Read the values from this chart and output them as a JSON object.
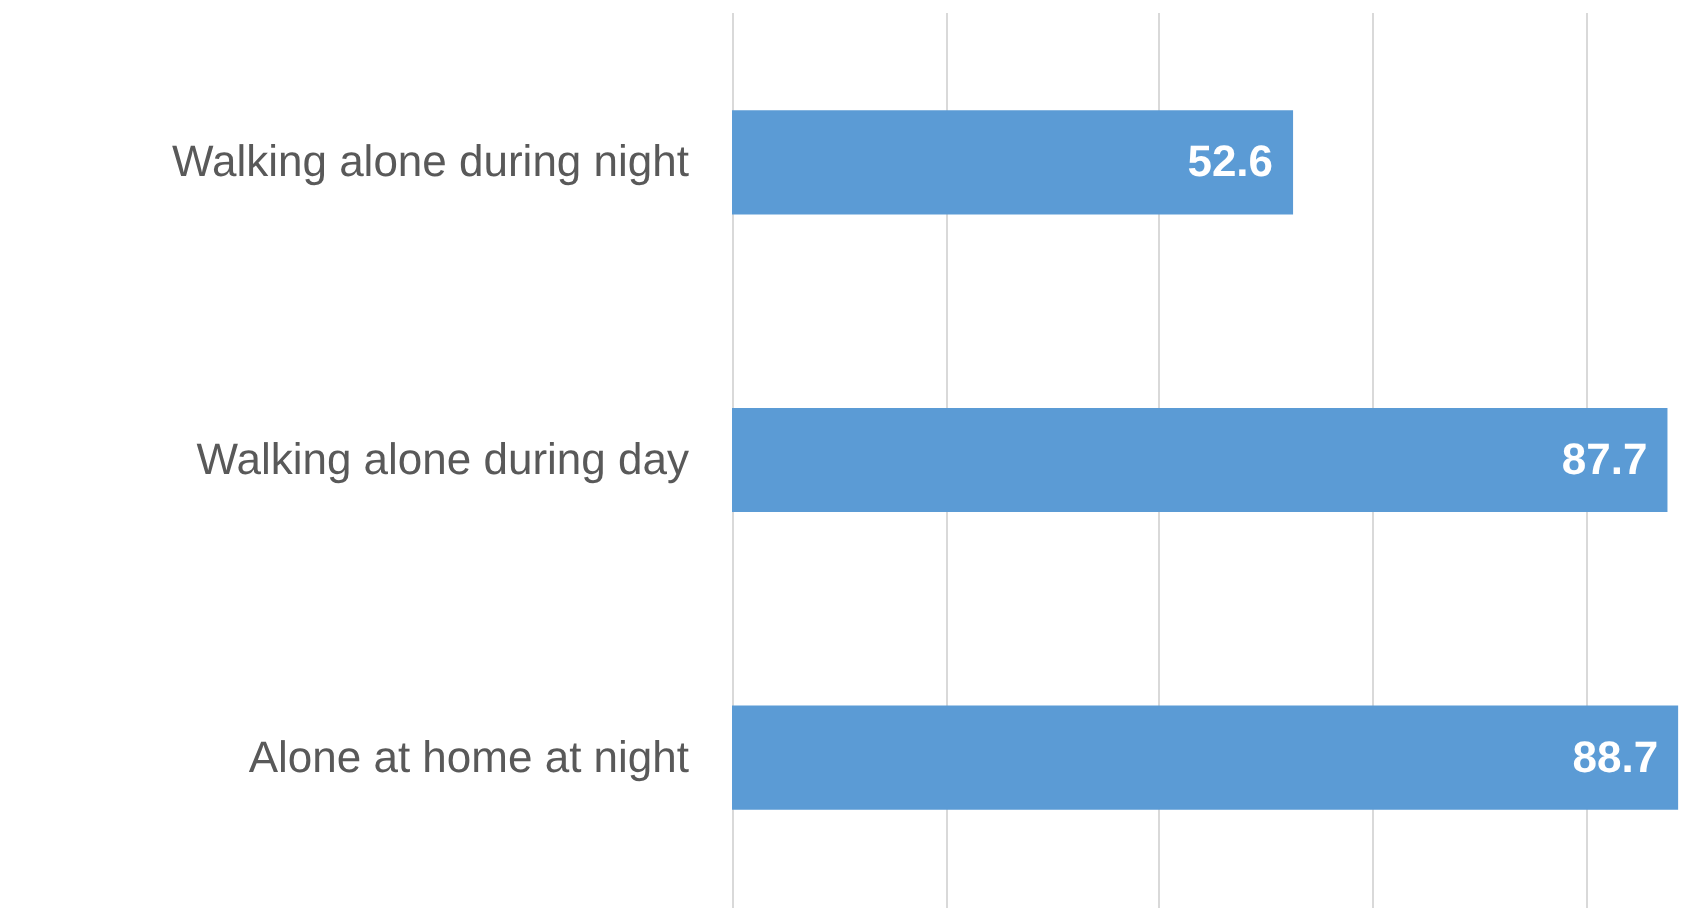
{
  "chart_data": {
    "type": "bar",
    "orientation": "horizontal",
    "categories": [
      "Walking alone during night",
      "Walking alone during day",
      "Alone at home at night"
    ],
    "values": [
      52.6,
      87.7,
      88.7
    ],
    "color": "#5b9bd5",
    "xlim": [
      0,
      90
    ],
    "xticks": [
      {
        "value": 0,
        "label": null
      },
      {
        "value": 20,
        "label": null
      },
      {
        "value": 40,
        "label": null
      },
      {
        "value": 60,
        "label": null
      },
      {
        "value": 80,
        "label": null
      }
    ],
    "grid": "x",
    "data_labels": true
  }
}
